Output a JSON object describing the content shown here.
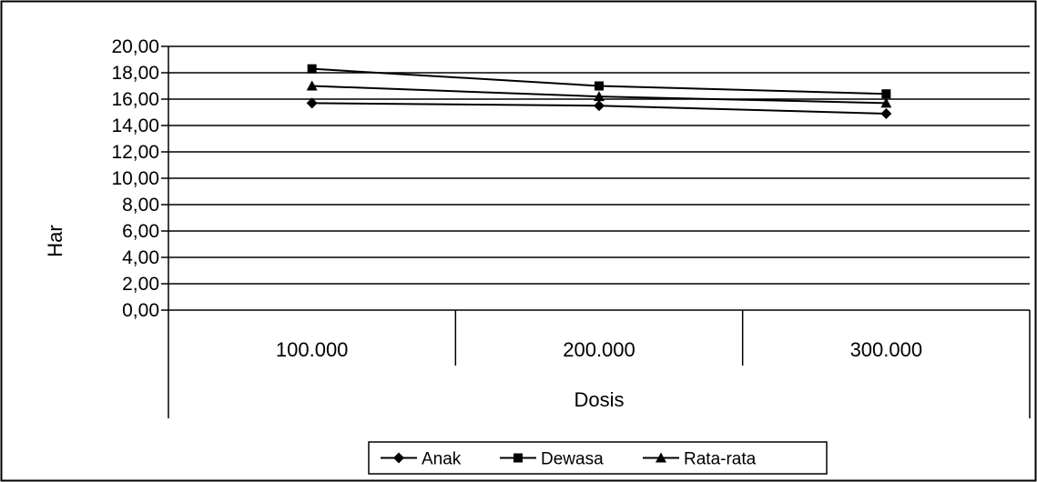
{
  "chart_data": {
    "type": "line",
    "categories": [
      "100.000",
      "200.000",
      "300.000"
    ],
    "series": [
      {
        "name": "Anak",
        "marker": "diamond",
        "values": [
          15.7,
          15.5,
          14.9
        ]
      },
      {
        "name": "Dewasa",
        "marker": "square",
        "values": [
          18.3,
          17.0,
          16.4
        ]
      },
      {
        "name": "Rata-rata",
        "marker": "triangle",
        "values": [
          17.0,
          16.2,
          15.7
        ]
      }
    ],
    "title": "",
    "xlabel": "Dosis",
    "ylabel": "Har",
    "ylim": [
      0,
      20
    ],
    "yticks": [
      "0,00",
      "2,00",
      "4,00",
      "6,00",
      "8,00",
      "10,00",
      "12,00",
      "14,00",
      "16,00",
      "18,00",
      "20,00"
    ],
    "grid": true,
    "legend_position": "bottom",
    "line_color": "#000000"
  }
}
